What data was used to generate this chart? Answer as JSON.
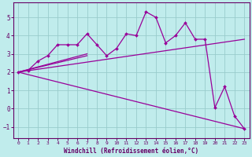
{
  "xlabel": "Windchill (Refroidissement éolien,°C)",
  "bg_color": "#c0ecec",
  "line_color": "#990099",
  "grid_color": "#99cccc",
  "spine_color": "#660066",
  "xlim": [
    -0.5,
    23.5
  ],
  "ylim": [
    -1.6,
    5.8
  ],
  "xticks": [
    0,
    1,
    2,
    3,
    4,
    5,
    6,
    7,
    8,
    9,
    10,
    11,
    12,
    13,
    14,
    15,
    16,
    17,
    18,
    19,
    20,
    21,
    22,
    23
  ],
  "yticks": [
    -1,
    0,
    1,
    2,
    3,
    4,
    5
  ],
  "data_x": [
    0,
    1,
    2,
    3,
    4,
    5,
    6,
    7,
    8,
    9,
    10,
    11,
    12,
    13,
    14,
    15,
    16,
    17,
    18,
    19,
    20,
    21,
    22,
    23
  ],
  "data_y": [
    2.0,
    2.1,
    2.6,
    2.9,
    3.5,
    3.5,
    3.5,
    4.1,
    3.5,
    2.9,
    3.3,
    4.1,
    4.0,
    5.3,
    5.0,
    3.6,
    4.0,
    4.7,
    3.8,
    3.8,
    0.05,
    1.2,
    -0.4,
    -1.1
  ],
  "trend1_x": [
    0,
    23
  ],
  "trend1_y": [
    2.0,
    3.8
  ],
  "trend2_x": [
    0,
    23
  ],
  "trend2_y": [
    2.0,
    -1.1
  ],
  "trend3_x": [
    0,
    7
  ],
  "trend3_y": [
    2.0,
    2.9
  ],
  "trend4_x": [
    0,
    7
  ],
  "trend4_y": [
    2.0,
    3.0
  ]
}
